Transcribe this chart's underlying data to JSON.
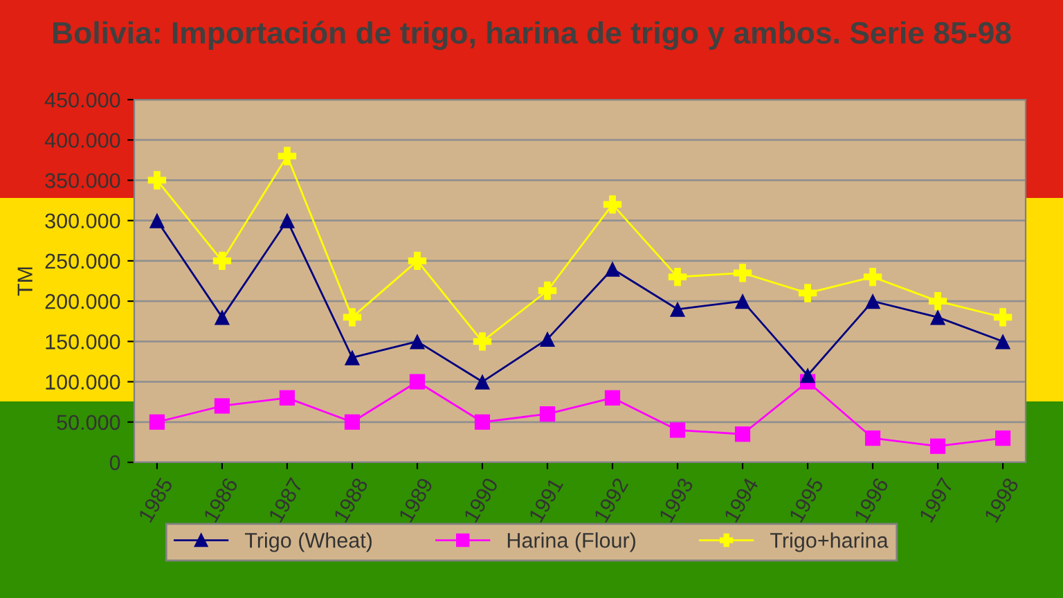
{
  "chart_data": {
    "type": "line",
    "title": "Bolivia: Importación de trigo, harina de trigo y ambos. Serie 85-98",
    "ylabel": "TM",
    "categories": [
      "1985",
      "1986",
      "1987",
      "1988",
      "1989",
      "1990",
      "1991",
      "1992",
      "1993",
      "1994",
      "1995",
      "1996",
      "1997",
      "1998"
    ],
    "series": [
      {
        "name": "Trigo (Wheat)",
        "color": "#000080",
        "marker": "triangle",
        "values": [
          300000,
          180000,
          300000,
          130000,
          150000,
          100000,
          153000,
          240000,
          190000,
          200000,
          108000,
          200000,
          180000,
          150000
        ]
      },
      {
        "name": "Harina (Flour)",
        "color": "#ff00ff",
        "marker": "square",
        "values": [
          50000,
          70000,
          80000,
          50000,
          100000,
          50000,
          60000,
          80000,
          40000,
          35000,
          100000,
          30000,
          20000,
          30000
        ]
      },
      {
        "name": "Trigo+harina",
        "color": "#ffff00",
        "marker": "cross",
        "values": [
          350000,
          250000,
          380000,
          180000,
          250000,
          150000,
          213000,
          320000,
          230000,
          235000,
          210000,
          230000,
          200000,
          180000
        ]
      }
    ],
    "ylim": [
      0,
      450000
    ],
    "yticks": [
      0,
      {
        "value": 50000,
        "label": "50.000"
      },
      {
        "value": 100000,
        "label": "100.000"
      },
      {
        "value": 150000,
        "label": "150.000"
      },
      {
        "value": 200000,
        "label": "200.000"
      },
      {
        "value": 250000,
        "label": "250.000"
      },
      {
        "value": 300000,
        "label": "300.000"
      },
      {
        "value": 350000,
        "label": "350.000"
      },
      {
        "value": 400000,
        "label": "400.000"
      },
      {
        "value": 450000,
        "label": "450.000"
      }
    ],
    "grid": "y",
    "legend": "bottom",
    "line_style": "solid"
  }
}
